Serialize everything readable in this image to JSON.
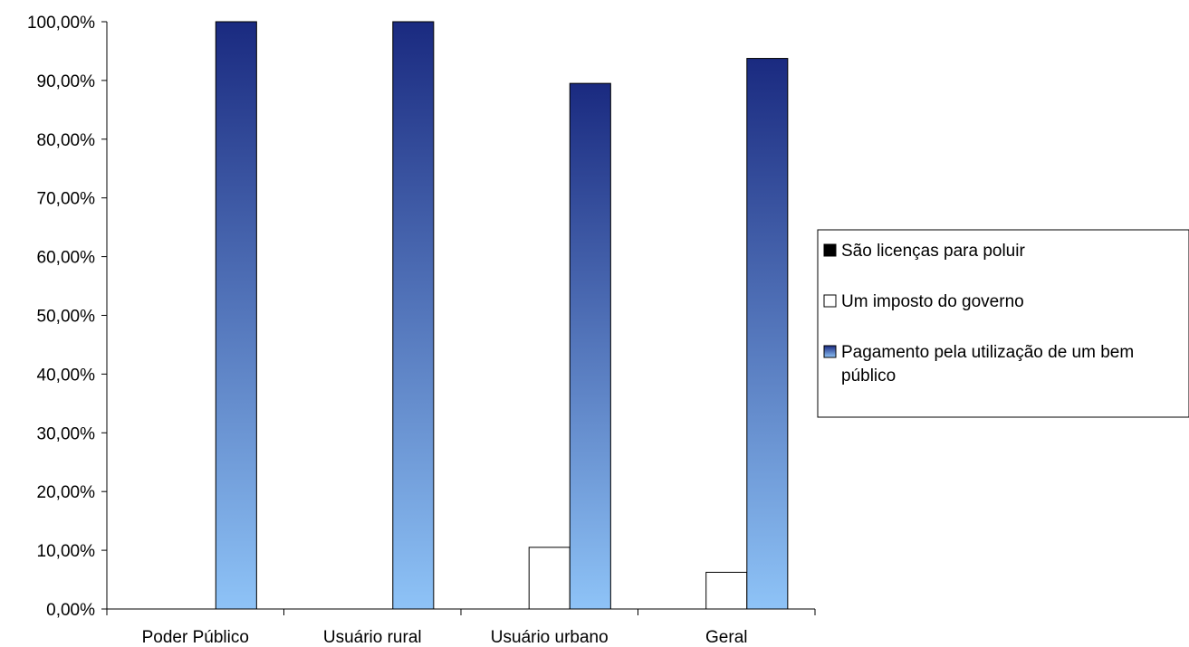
{
  "chart_data": {
    "type": "bar",
    "categories": [
      "Poder Público",
      "Usuário rural",
      "Usuário urbano",
      "Geral"
    ],
    "series": [
      {
        "name": "São licenças para poluir",
        "values": [
          0,
          0,
          0,
          0
        ],
        "color": "#000000"
      },
      {
        "name": "Um imposto do governo",
        "values": [
          0,
          0,
          10.5,
          6.25
        ],
        "color": "#ffffff"
      },
      {
        "name": "Pagamento pela utilização de um bem público",
        "values": [
          100,
          100,
          89.5,
          93.75
        ],
        "color_top": "#1a2a80",
        "color_bottom": "#8ec3f7"
      }
    ],
    "ylim": [
      0,
      100
    ],
    "yticks": [
      0,
      10,
      20,
      30,
      40,
      50,
      60,
      70,
      80,
      90,
      100
    ],
    "ytick_labels": [
      "0,00%",
      "10,00%",
      "20,00%",
      "30,00%",
      "40,00%",
      "50,00%",
      "60,00%",
      "70,00%",
      "80,00%",
      "90,00%",
      "100,00%"
    ],
    "title": "",
    "xlabel": "",
    "ylabel": "",
    "grid": false,
    "legend_position": "right"
  }
}
